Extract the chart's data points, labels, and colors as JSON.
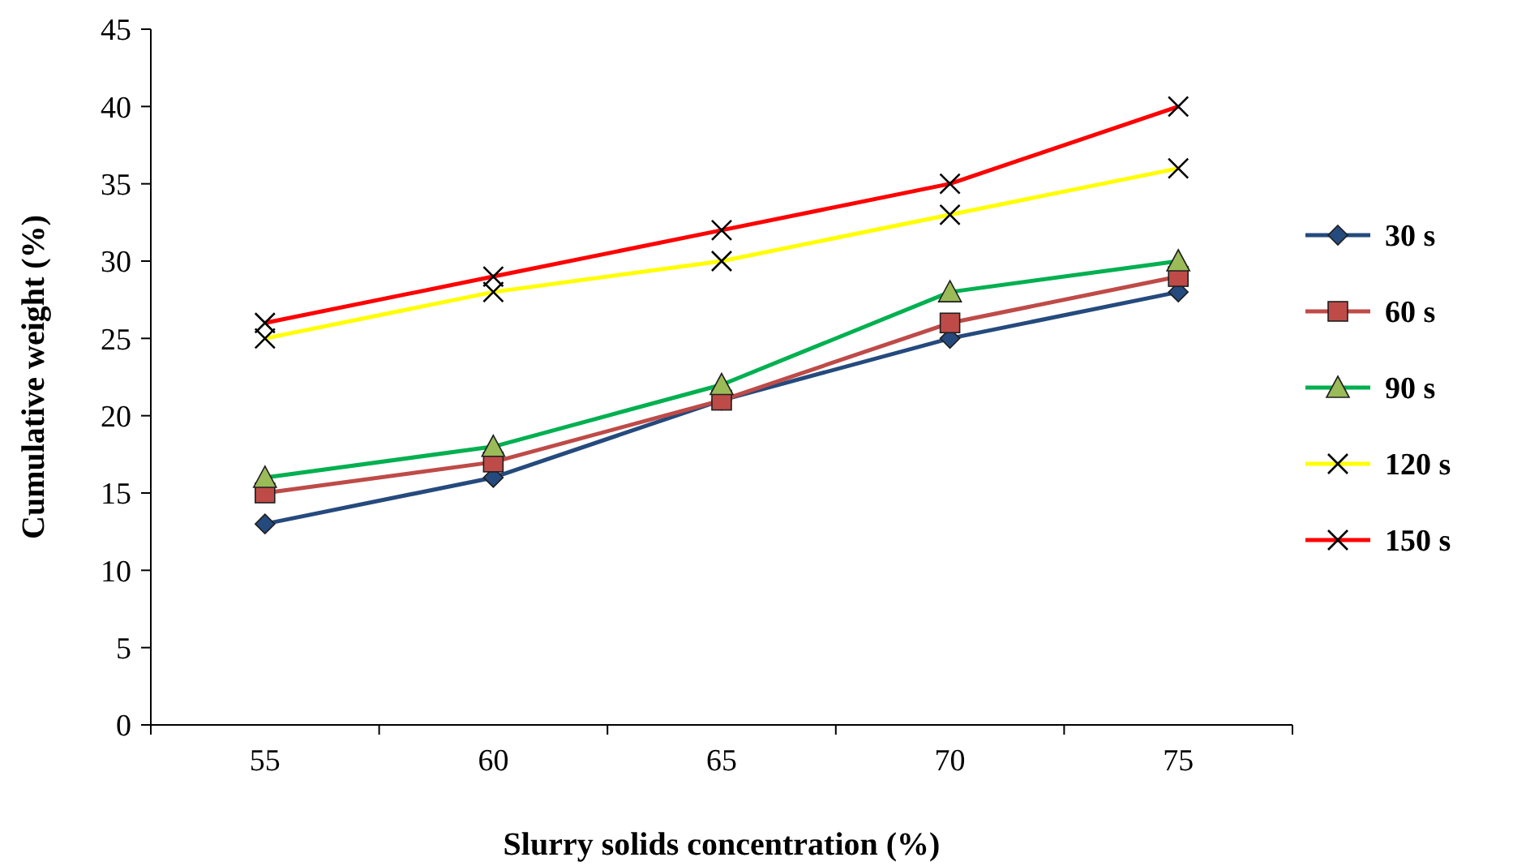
{
  "chart_data": {
    "type": "line",
    "xlabel": "Slurry solids concentration (%)",
    "ylabel": "Cumulative weight (%)",
    "categories": [
      "55",
      "60",
      "65",
      "70",
      "75"
    ],
    "ylim": [
      0,
      45
    ],
    "yticks": [
      0,
      5,
      10,
      15,
      20,
      25,
      30,
      35,
      40,
      45
    ],
    "grid": false,
    "legend": "right",
    "series": [
      {
        "name": "30 s",
        "color": "#254a7d",
        "marker": "diamond",
        "values": [
          13,
          16,
          21,
          25,
          28
        ]
      },
      {
        "name": "60 s",
        "color": "#be4b48",
        "marker": "square",
        "values": [
          15,
          17,
          21,
          26,
          29
        ]
      },
      {
        "name": "90 s",
        "color": "#00b050",
        "marker": "triangle",
        "values": [
          16,
          18,
          22,
          28,
          30
        ]
      },
      {
        "name": "120 s",
        "color": "#ffff00",
        "marker": "cross",
        "values": [
          25,
          28,
          30,
          33,
          36
        ]
      },
      {
        "name": "150 s",
        "color": "#ff0000",
        "marker": "cross",
        "values": [
          26,
          29,
          32,
          35,
          40
        ]
      }
    ]
  }
}
